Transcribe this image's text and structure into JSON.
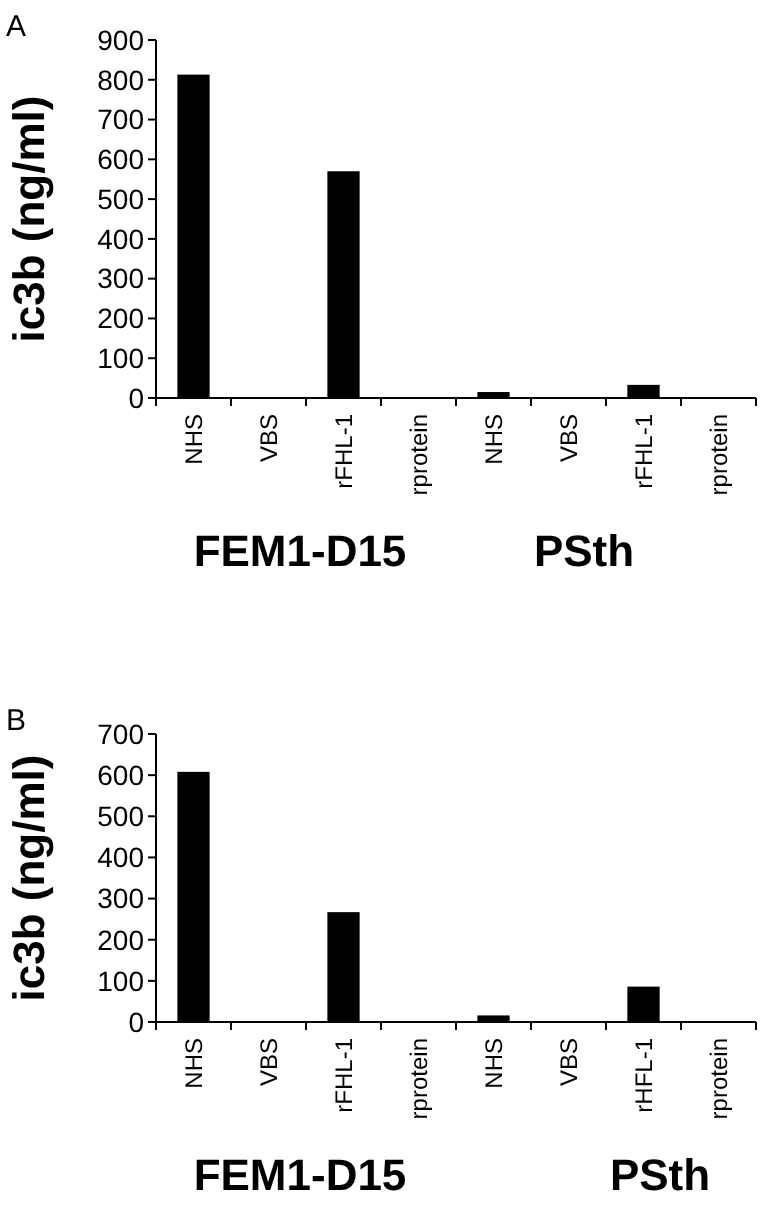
{
  "chart_data": [
    {
      "type": "bar",
      "title": "A",
      "ylabel": "ic3b (ng/ml)",
      "categories": [
        "NHS",
        "VBS",
        "rFHL-1",
        "rprotein",
        "NHS",
        "VBS",
        "rFHL-1",
        "rprotein"
      ],
      "values": [
        813,
        0,
        570,
        0,
        15,
        0,
        33,
        0
      ],
      "color": "#000000",
      "ylim": [
        0,
        900
      ],
      "yticks": [
        0,
        100,
        200,
        300,
        400,
        500,
        600,
        700,
        800,
        900
      ],
      "annotations": [
        "FEM1-D15",
        "PSth"
      ]
    },
    {
      "type": "bar",
      "title": "B",
      "ylabel": "ic3b (ng/ml)",
      "categories": [
        "NHS",
        "VBS",
        "rFHL-1",
        "rprotein",
        "NHS",
        "VBS",
        "rHFL-1",
        "rprotein"
      ],
      "values": [
        608,
        0,
        267,
        0,
        16,
        0,
        86,
        0
      ],
      "color": "#000000",
      "ylim": [
        0,
        700
      ],
      "yticks": [
        0,
        100,
        200,
        300,
        400,
        500,
        600,
        700
      ],
      "annotations": [
        "FEM1-D15",
        "PSth"
      ]
    }
  ]
}
